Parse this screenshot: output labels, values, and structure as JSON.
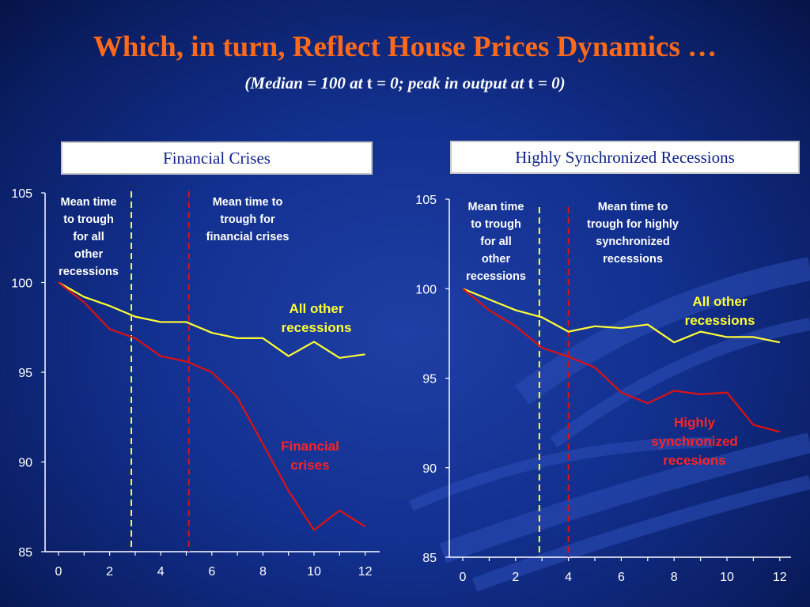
{
  "slide": {
    "title": "Which, in turn, Reflect House Prices Dynamics …",
    "subtitle_parts": [
      "(Median = 100 at ",
      "t",
      " = 0; peak in output at ",
      "t",
      " = 0)"
    ]
  },
  "colors": {
    "title": "#ff6a1a",
    "all_other_line": "#ffff33",
    "crisis_line": "#dd1111",
    "crisis_label": "#ff2222",
    "axis": "#ffffff"
  },
  "chart_data": [
    {
      "type": "line",
      "title": "Financial Crises",
      "x": [
        0,
        1,
        2,
        3,
        4,
        5,
        6,
        7,
        8,
        9,
        10,
        11,
        12
      ],
      "xticks": [
        0,
        2,
        4,
        6,
        8,
        10,
        12
      ],
      "yticks": [
        85,
        90,
        95,
        100,
        105
      ],
      "xlim": [
        0,
        12.5
      ],
      "ylim": [
        85,
        105
      ],
      "grid": false,
      "series": [
        {
          "name": "All other recessions",
          "color": "#ffff33",
          "values": [
            100,
            99.2,
            98.7,
            98.1,
            97.8,
            97.8,
            97.2,
            96.9,
            96.9,
            95.9,
            96.7,
            95.8,
            96.0
          ]
        },
        {
          "name": "Financial crises",
          "color": "#dd1111",
          "values": [
            100,
            98.9,
            97.4,
            96.9,
            95.9,
            95.6,
            95.0,
            93.6,
            91.0,
            88.4,
            86.2,
            87.3,
            86.4
          ]
        }
      ],
      "vlines": [
        {
          "x": 2.85,
          "color": "#ffff33",
          "label": [
            "Mean time",
            "to trough",
            "for all",
            "other",
            "recessions"
          ]
        },
        {
          "x": 5.1,
          "color": "#dd1111",
          "label": [
            "Mean time to",
            "trough for",
            "financial crises"
          ]
        }
      ],
      "series_labels": [
        {
          "text": [
            "All other",
            "recessions"
          ],
          "color": "yellow"
        },
        {
          "text": [
            "Financial",
            "crises"
          ],
          "color": "red"
        }
      ]
    },
    {
      "type": "line",
      "title": "Highly Synchronized Recessions",
      "x": [
        0,
        1,
        2,
        3,
        4,
        5,
        6,
        7,
        8,
        9,
        10,
        11,
        12
      ],
      "xticks": [
        0,
        2,
        4,
        6,
        8,
        10,
        12
      ],
      "yticks": [
        85,
        90,
        95,
        100,
        105
      ],
      "xlim": [
        0,
        12.5
      ],
      "ylim": [
        85,
        105
      ],
      "grid": false,
      "series": [
        {
          "name": "All other recessions",
          "color": "#ffff33",
          "values": [
            100,
            99.4,
            98.8,
            98.4,
            97.6,
            97.9,
            97.8,
            98.0,
            97.0,
            97.6,
            97.3,
            97.3,
            97.0
          ]
        },
        {
          "name": "Highly synchronized recesions",
          "color": "#dd1111",
          "values": [
            100,
            98.8,
            97.9,
            96.7,
            96.2,
            95.6,
            94.2,
            93.6,
            94.3,
            94.1,
            94.2,
            92.4,
            92.0
          ]
        }
      ],
      "vlines": [
        {
          "x": 2.9,
          "color": "#ffff33",
          "label": [
            "Mean time",
            "to trough",
            "for all",
            "other",
            "recessions"
          ]
        },
        {
          "x": 4.0,
          "color": "#dd1111",
          "label": [
            "Mean time to",
            "trough for highly",
            "synchronized",
            "recessions"
          ]
        }
      ],
      "series_labels": [
        {
          "text": [
            "All other",
            "recessions"
          ],
          "color": "yellow"
        },
        {
          "text": [
            "Highly",
            "synchronized",
            "recesions"
          ],
          "color": "red"
        }
      ]
    }
  ]
}
